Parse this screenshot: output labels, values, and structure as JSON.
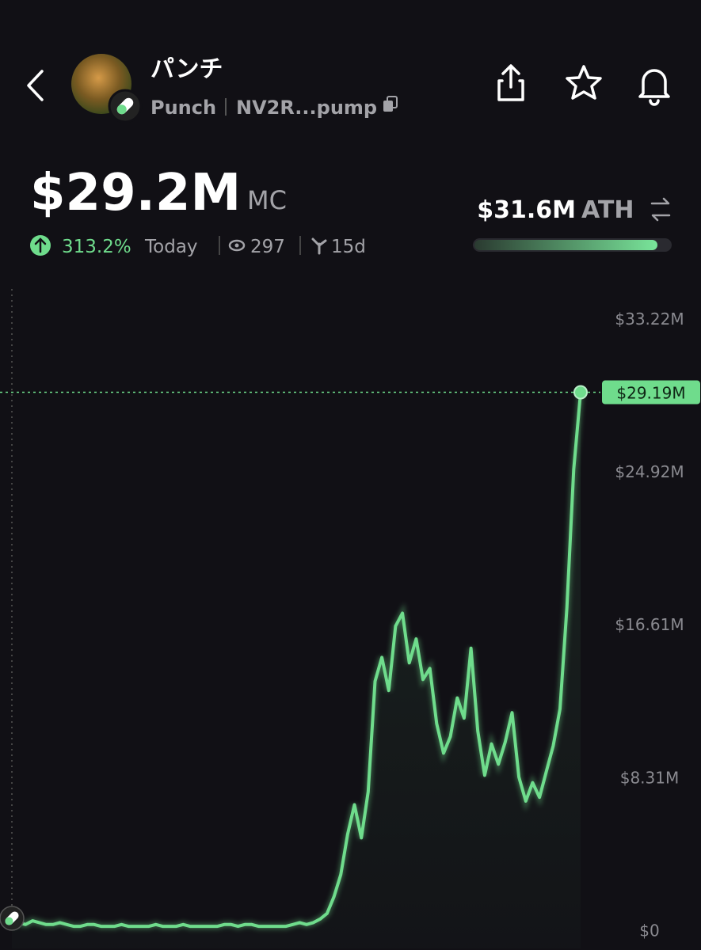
{
  "header": {
    "name": "パンチ",
    "ticker": "Punch",
    "address": "NV2R...pump"
  },
  "stats": {
    "market_cap": "$29.2M",
    "market_cap_label": "MC",
    "change": "313.2%",
    "change_period": "Today",
    "views": "297",
    "age": "15d",
    "ath": "$31.6M",
    "ath_label": "ATH"
  },
  "chart_data": {
    "type": "line",
    "series": [
      {
        "color": "#6fdc8c",
        "values": [
          0.3,
          0.4,
          0.3,
          0.5,
          0.4,
          0.3,
          0.3,
          0.4,
          0.3,
          0.2,
          0.2,
          0.3,
          0.3,
          0.2,
          0.2,
          0.2,
          0.3,
          0.2,
          0.2,
          0.2,
          0.2,
          0.3,
          0.2,
          0.2,
          0.2,
          0.3,
          0.2,
          0.2,
          0.2,
          0.2,
          0.2,
          0.3,
          0.3,
          0.2,
          0.3,
          0.3,
          0.2,
          0.2,
          0.2,
          0.2,
          0.2,
          0.3,
          0.4,
          0.3,
          0.4,
          0.6,
          0.9,
          1.8,
          3.0,
          5.2,
          6.8,
          5.0,
          7.5,
          13.5,
          14.8,
          13.0,
          16.5,
          17.2,
          14.5,
          15.8,
          13.6,
          14.2,
          11.2,
          9.6,
          10.5,
          12.6,
          11.5,
          15.3,
          10.8,
          8.4,
          10.1,
          9.0,
          10.2,
          11.8,
          8.3,
          7.0,
          8.0,
          7.2,
          8.6,
          10.0,
          12.0,
          17.5,
          25.0,
          29.19
        ]
      }
    ],
    "ylim": [
      -1,
      34.8
    ],
    "yticks": [
      {
        "value": 0,
        "label": "$0"
      },
      {
        "value": 8.31,
        "label": "$8.31M"
      },
      {
        "value": 16.61,
        "label": "$16.61M"
      },
      {
        "value": 24.92,
        "label": "$24.92M"
      },
      {
        "value": 33.22,
        "label": "$33.22M"
      }
    ],
    "current": {
      "value": 29.19,
      "label": "$29.19M"
    }
  }
}
